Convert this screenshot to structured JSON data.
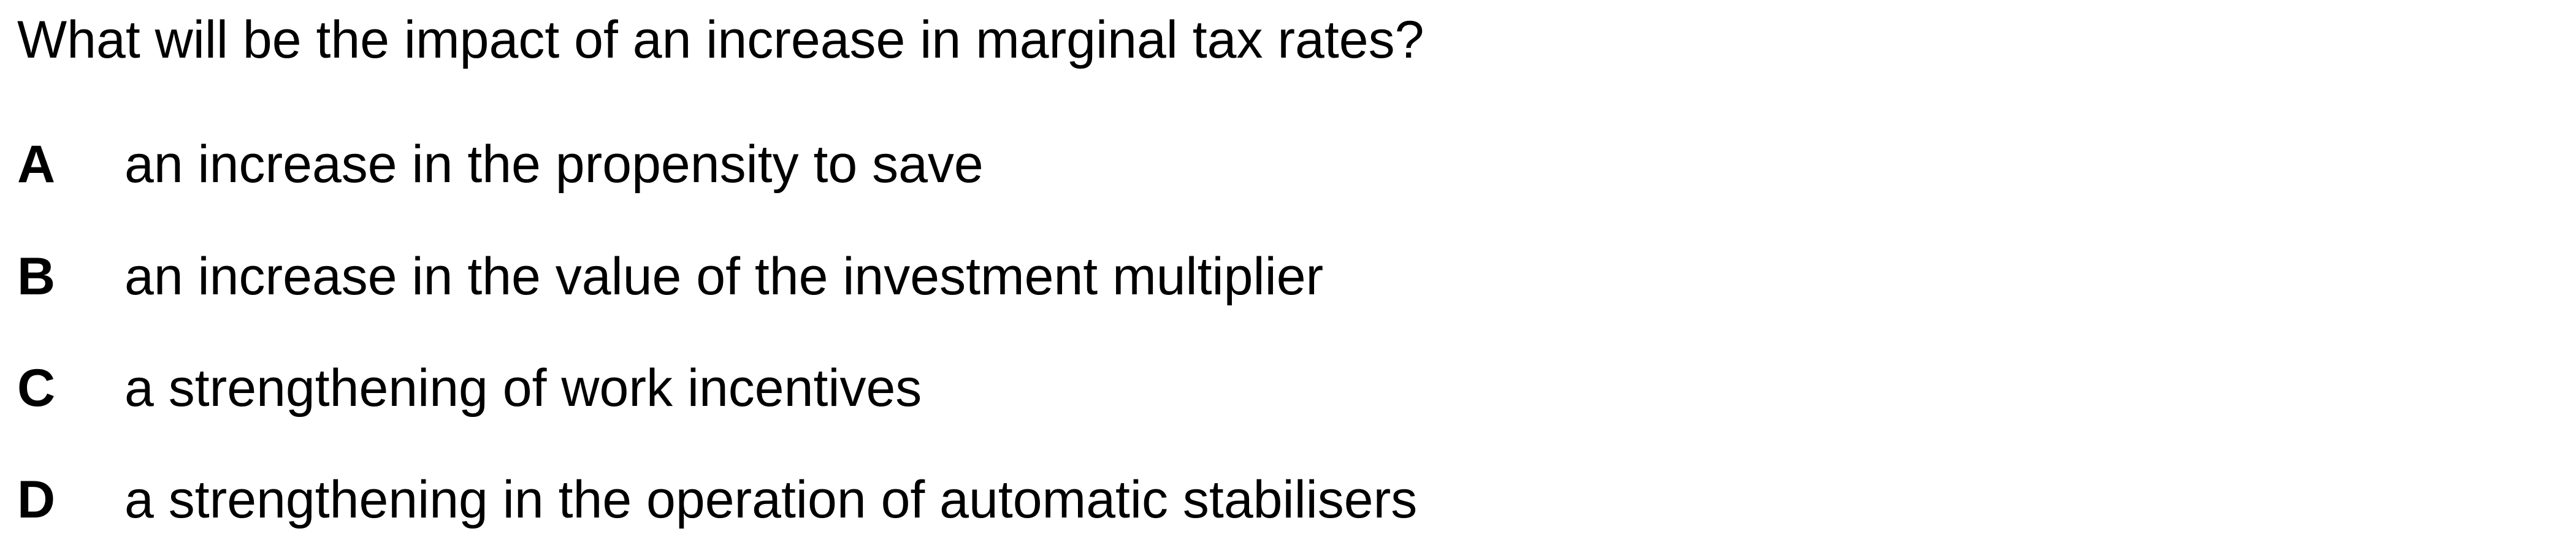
{
  "question": "What will be the impact of an increase in marginal tax rates?",
  "options": [
    {
      "letter": "A",
      "text": "an increase in the propensity to save"
    },
    {
      "letter": "B",
      "text": "an increase in the value of the investment multiplier"
    },
    {
      "letter": "C",
      "text": "a strengthening of work incentives"
    },
    {
      "letter": "D",
      "text": "a strengthening in the operation of automatic stabilisers"
    }
  ]
}
